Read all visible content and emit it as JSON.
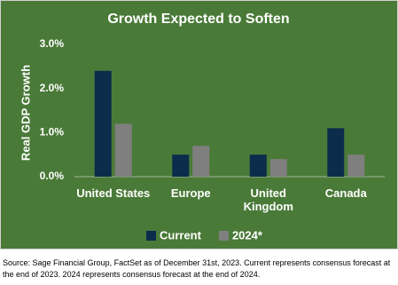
{
  "chart_data": {
    "type": "bar",
    "title": "Growth Expected to Soften",
    "y_label": "Real GDP Growth",
    "categories": [
      "United States",
      "Europe",
      "United Kingdom",
      "Canada"
    ],
    "series": [
      {
        "name": "Current",
        "color": "#0c2c4c",
        "values": [
          2.4,
          0.5,
          0.5,
          1.1
        ]
      },
      {
        "name": "2024*",
        "color": "#7f7f7f",
        "values": [
          1.2,
          0.7,
          0.4,
          0.5
        ]
      }
    ],
    "ylim": [
      0,
      3
    ],
    "yticks": [
      {
        "value": 0,
        "label": "0.0%"
      },
      {
        "value": 1,
        "label": "1.0%"
      },
      {
        "value": 2,
        "label": "2.0%"
      },
      {
        "value": 3,
        "label": "3.0%"
      }
    ],
    "grid": false,
    "legend": "bottom",
    "source": "Source: Sage Financial Group, FactSet as of December 31st, 2023. Current represents consensus forecast at the end of 2023. 2024 represents consensus forecast at the end of 2024."
  }
}
